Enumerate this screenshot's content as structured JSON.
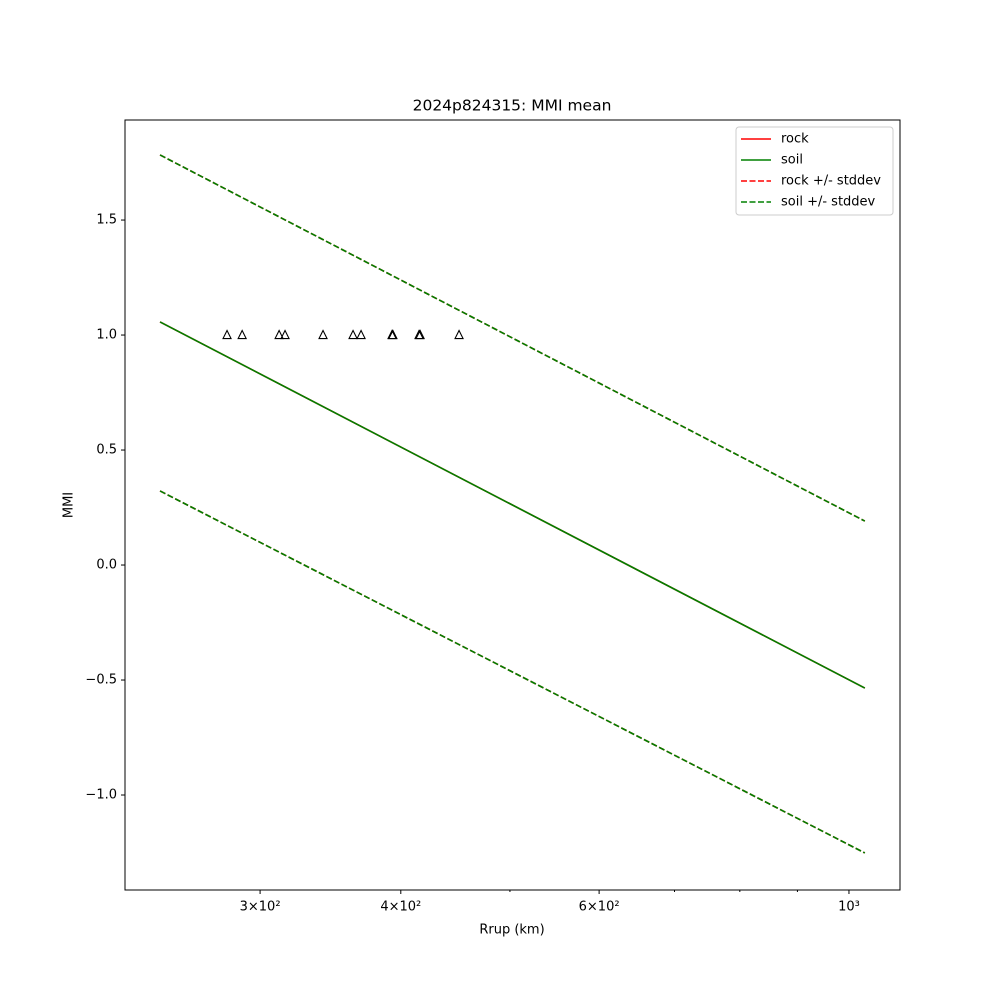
{
  "chart_data": {
    "type": "line",
    "title": "2024p824315: MMI mean",
    "x_label": "Rrup (km)",
    "y_label": "MMI",
    "x_log": true,
    "xlim": [
      227.6,
      1110
    ],
    "ylim": [
      -1.413,
      1.935
    ],
    "xticks": [
      {
        "value": 300,
        "label": "3×10²"
      },
      {
        "value": 400,
        "label": "4×10²"
      },
      {
        "value": 600,
        "label": "6×10²"
      },
      {
        "value": 1000,
        "label": "10³"
      }
    ],
    "xminor_ticks": [
      500,
      700,
      800,
      900
    ],
    "yticks": [
      {
        "value": -1.0,
        "label": "−1.0"
      },
      {
        "value": -0.5,
        "label": "−0.5"
      },
      {
        "value": 0.0,
        "label": "0.0"
      },
      0.5,
      {
        "value": 1.0,
        "label": "1.0"
      },
      1.5
    ],
    "grid": false,
    "legend": "upper right",
    "series": [
      {
        "name": "rock",
        "color": "#ff0000",
        "style": "solid",
        "x": [
          244.5,
          1033
        ],
        "values": [
          1.057,
          -0.535
        ]
      },
      {
        "name": "soil",
        "color": "#008000",
        "style": "solid",
        "x": [
          244.5,
          1033
        ],
        "values": [
          1.057,
          -0.535
        ]
      },
      {
        "name": "rock +/- stddev",
        "color": "#ff0000",
        "style": "dashed",
        "x": [
          244.5,
          1033
        ],
        "upper": [
          1.783,
          0.191
        ],
        "lower": [
          0.322,
          -1.252
        ]
      },
      {
        "name": "soil +/- stddev",
        "color": "#008000",
        "style": "dashed",
        "x": [
          244.5,
          1033
        ],
        "upper": [
          1.783,
          0.191
        ],
        "lower": [
          0.322,
          -1.252
        ]
      }
    ],
    "observations": {
      "marker": "triangle",
      "color": "#000000",
      "x": [
        280.4,
        289.2,
        311.9,
        315.7,
        341.2,
        362.8,
        368.8,
        392.9,
        393.6,
        415.2,
        416.1,
        450.6
      ],
      "values": [
        1,
        1,
        1,
        1,
        1,
        1,
        1,
        1,
        1,
        1,
        1,
        1
      ]
    }
  }
}
